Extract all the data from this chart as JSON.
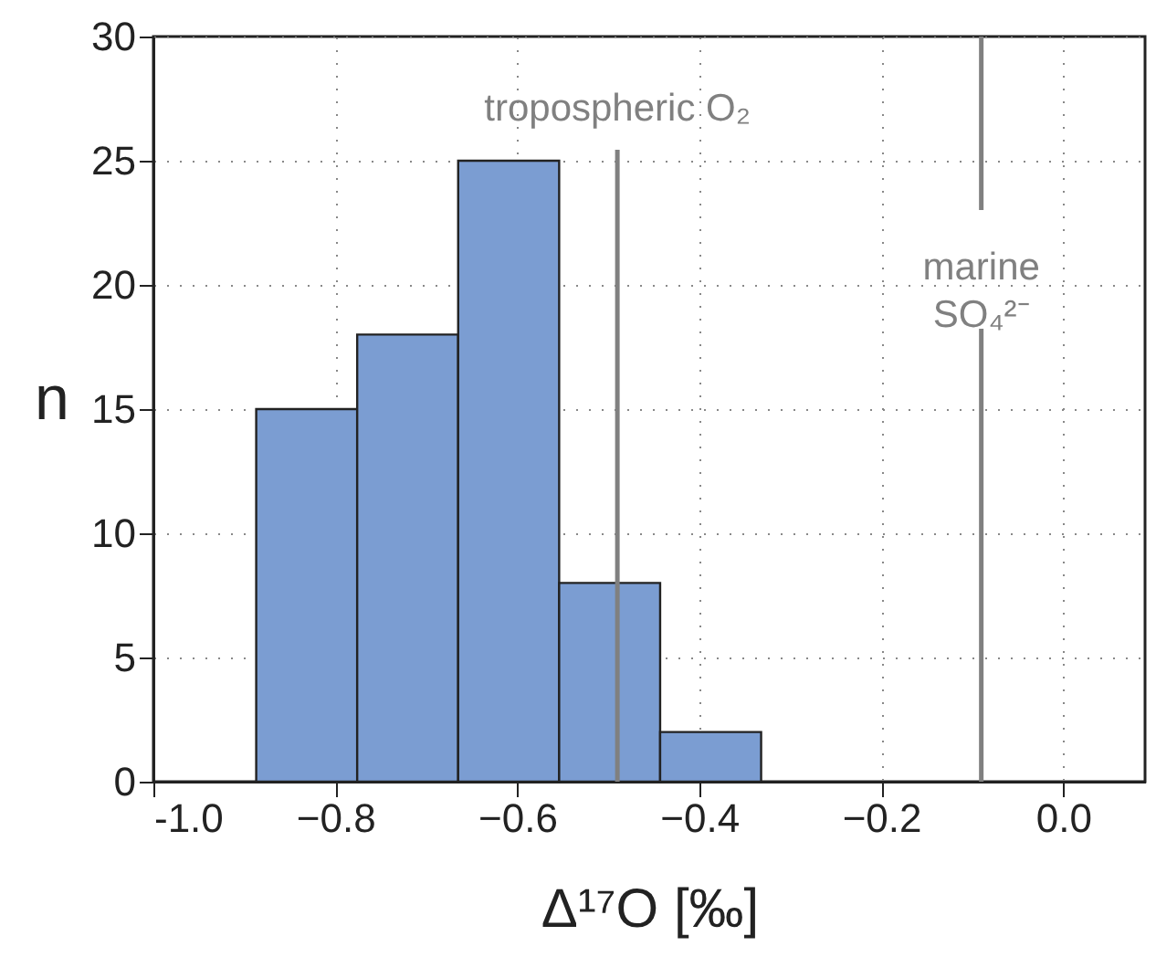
{
  "chart_data": {
    "type": "histogram",
    "xlabel": "Δ¹⁷O [‰]",
    "ylabel": "n",
    "bins": [
      -0.887,
      -0.776,
      -0.665,
      -0.554,
      -0.443,
      -0.332
    ],
    "values": [
      15,
      18,
      25,
      8,
      2
    ],
    "color": "#7b9dd2",
    "xlim": [
      -1.0,
      0.09
    ],
    "xticks": [
      {
        "value": -1.0,
        "label": "-1.0"
      },
      -0.8,
      -0.6,
      -0.4,
      -0.2,
      {
        "value": 0.0,
        "label": "0.0"
      }
    ],
    "ylim": [
      0,
      30
    ],
    "yticks": [
      0,
      5,
      10,
      15,
      20,
      25,
      30
    ],
    "grid": true,
    "ref_lines": [
      {
        "axis": "x",
        "value": -0.49,
        "label": "tropospheric O₂",
        "color": "#808080"
      },
      {
        "axis": "x",
        "value": -0.09,
        "label": "marine\nSO₄²⁻",
        "color": "#808080"
      }
    ]
  }
}
